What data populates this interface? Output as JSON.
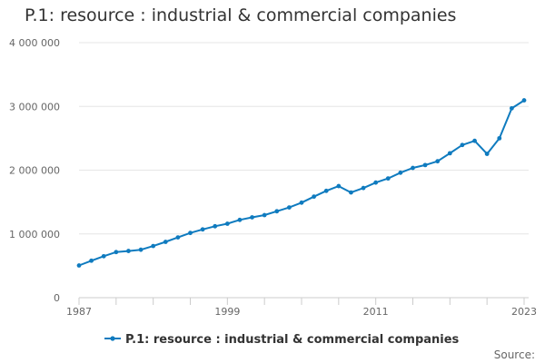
{
  "chart_data": {
    "type": "line",
    "title": "P.1: resource : industrial & commercial companies",
    "xlabel": "",
    "ylabel": "",
    "xlim": [
      1987,
      2023
    ],
    "ylim": [
      0,
      4000000
    ],
    "x_tick_labels": [
      "1987",
      "1999",
      "2011",
      "2023"
    ],
    "y_tick_labels": [
      "0",
      "1 000 000",
      "2 000 000",
      "3 000 000",
      "4 000 000"
    ],
    "y_ticks": [
      0,
      1000000,
      2000000,
      3000000,
      4000000
    ],
    "x_ticks_labeled": [
      1987,
      1999,
      2011,
      2023
    ],
    "x_minor_ticks": [
      1987,
      1990,
      1993,
      1996,
      1999,
      2002,
      2005,
      2008,
      2011,
      2014,
      2017,
      2020,
      2023
    ],
    "grid": true,
    "legend_position": "bottom",
    "series": [
      {
        "name": "P.1: resource : industrial & commercial companies",
        "color": "#0f7bbf",
        "x": [
          1987,
          1988,
          1989,
          1990,
          1991,
          1992,
          1993,
          1994,
          1995,
          1996,
          1997,
          1998,
          1999,
          2000,
          2001,
          2002,
          2003,
          2004,
          2005,
          2006,
          2007,
          2008,
          2009,
          2010,
          2011,
          2012,
          2013,
          2014,
          2015,
          2016,
          2017,
          2018,
          2019,
          2020,
          2021,
          2022,
          2023
        ],
        "values": [
          505000,
          580000,
          650000,
          715000,
          732000,
          752000,
          810000,
          875000,
          945000,
          1015000,
          1070000,
          1120000,
          1160000,
          1220000,
          1260000,
          1295000,
          1355000,
          1415000,
          1490000,
          1585000,
          1675000,
          1750000,
          1650000,
          1720000,
          1805000,
          1870000,
          1960000,
          2035000,
          2080000,
          2140000,
          2265000,
          2395000,
          2460000,
          2255000,
          2500000,
          2970000,
          3095000
        ]
      }
    ]
  },
  "legend": {
    "label": "P.1: resource : industrial & commercial companies"
  },
  "source": {
    "label": "Source:"
  }
}
